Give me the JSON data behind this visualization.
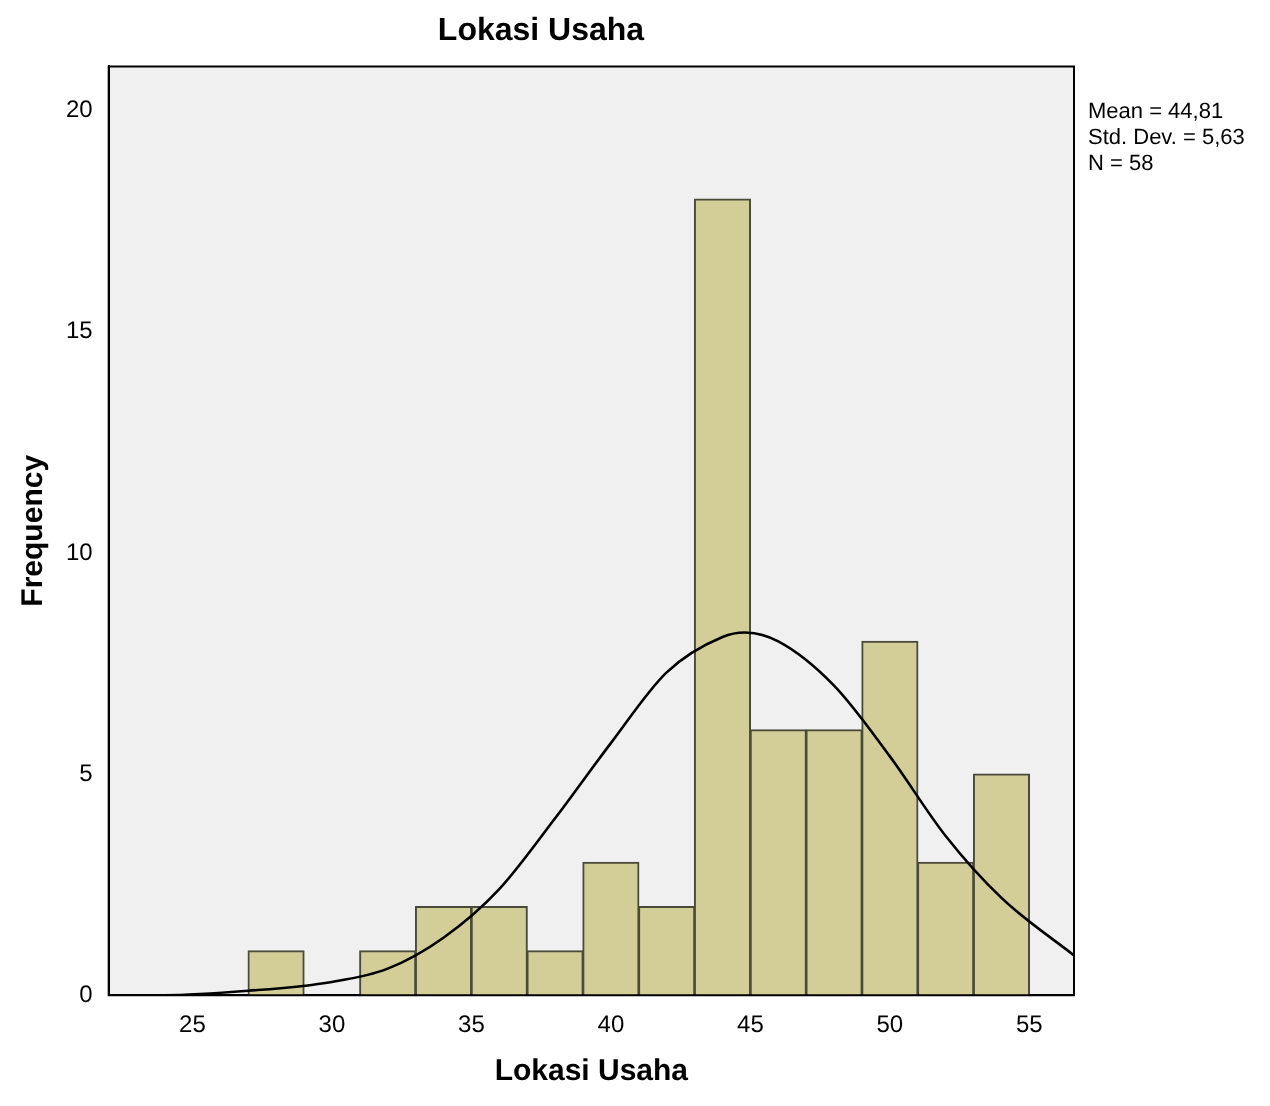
{
  "chart_data": {
    "type": "histogram",
    "title": "Lokasi Usaha",
    "xlabel": "Lokasi Usaha",
    "ylabel": "Frequency",
    "bins": [
      27,
      29,
      31,
      33,
      35,
      37,
      39,
      41,
      43,
      45,
      47,
      49,
      51,
      53,
      55
    ],
    "values": [
      1,
      0,
      1,
      2,
      2,
      1,
      3,
      2,
      18,
      6,
      6,
      8,
      3,
      5
    ],
    "color": "#d3ce98",
    "series": [
      {
        "type": "line",
        "color": "#000000",
        "x": [
          22,
          24,
          27,
          30,
          32,
          34,
          36,
          38,
          40,
          42,
          44,
          44.8,
          46,
          48,
          50,
          52,
          54,
          56.6
        ],
        "values": [
          0,
          0,
          0.1,
          0.3,
          0.6,
          1.3,
          2.4,
          4,
          5.7,
          7.3,
          8.1,
          8.2,
          8,
          7,
          5.4,
          3.6,
          2.2,
          0.9
        ]
      }
    ],
    "xlim": [
      22,
      56.6
    ],
    "xticks": [
      25,
      30,
      35,
      40,
      45,
      50,
      55
    ],
    "ylim": [
      0,
      21
    ],
    "yticks": [
      0,
      5,
      10,
      15,
      20
    ],
    "grid": false,
    "legend": false,
    "marker": "none",
    "annotations": [
      "Mean = 44,81",
      "Std. Dev. = 5,63",
      "N = 58"
    ]
  }
}
